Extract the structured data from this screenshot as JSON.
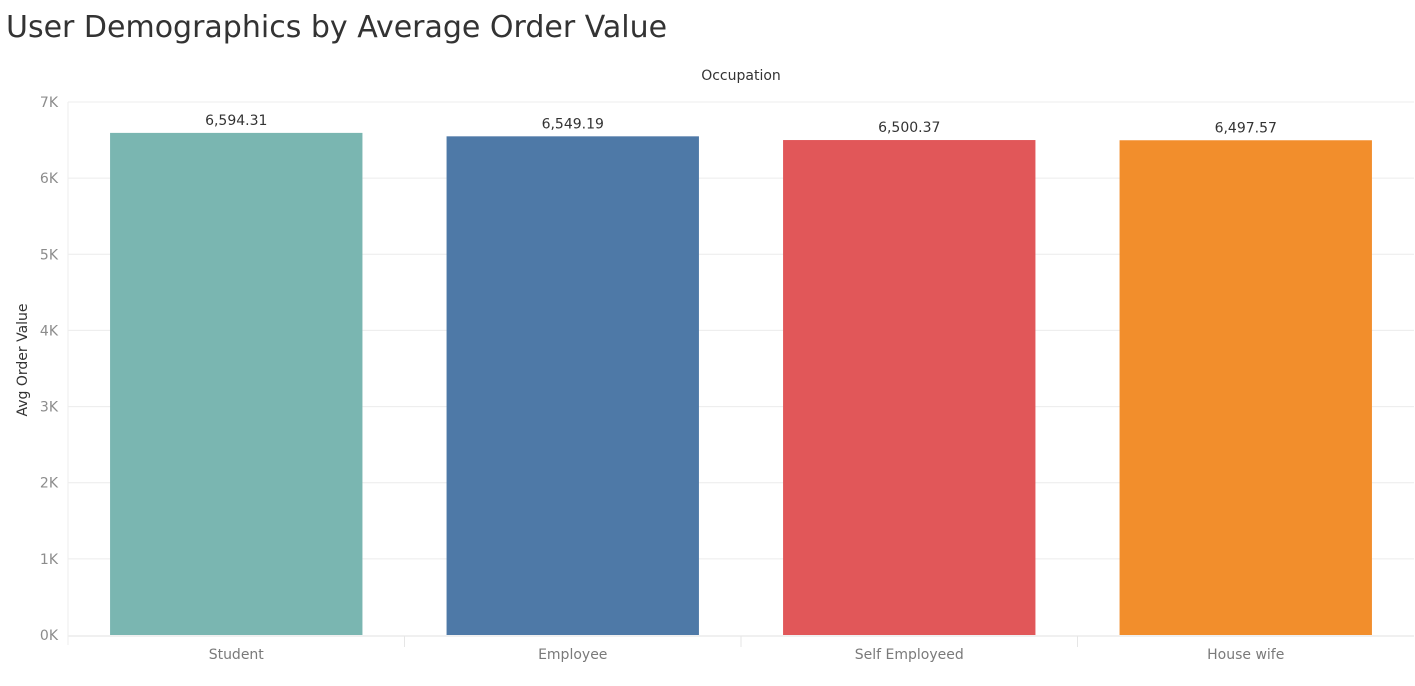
{
  "chart_data": {
    "type": "bar",
    "title": "User Demographics by Average Order Value",
    "column_header": "Occupation",
    "ylabel": "Avg Order Value",
    "categories": [
      "Student",
      "Employee",
      "Self Employeed",
      "House wife"
    ],
    "values": [
      6594.31,
      6549.19,
      6500.37,
      6497.57
    ],
    "value_labels": [
      "6,594.31",
      "6,549.19",
      "6,500.37",
      "6,497.57"
    ],
    "colors": [
      "#7ab6b1",
      "#4e79a7",
      "#e15759",
      "#f28e2c"
    ],
    "ylim": [
      0,
      7000
    ],
    "yticks": [
      0,
      1000,
      2000,
      3000,
      4000,
      5000,
      6000,
      7000
    ],
    "ytick_labels": [
      "0K",
      "1K",
      "2K",
      "3K",
      "4K",
      "5K",
      "6K",
      "7K"
    ],
    "grid": true,
    "legend": "none"
  }
}
